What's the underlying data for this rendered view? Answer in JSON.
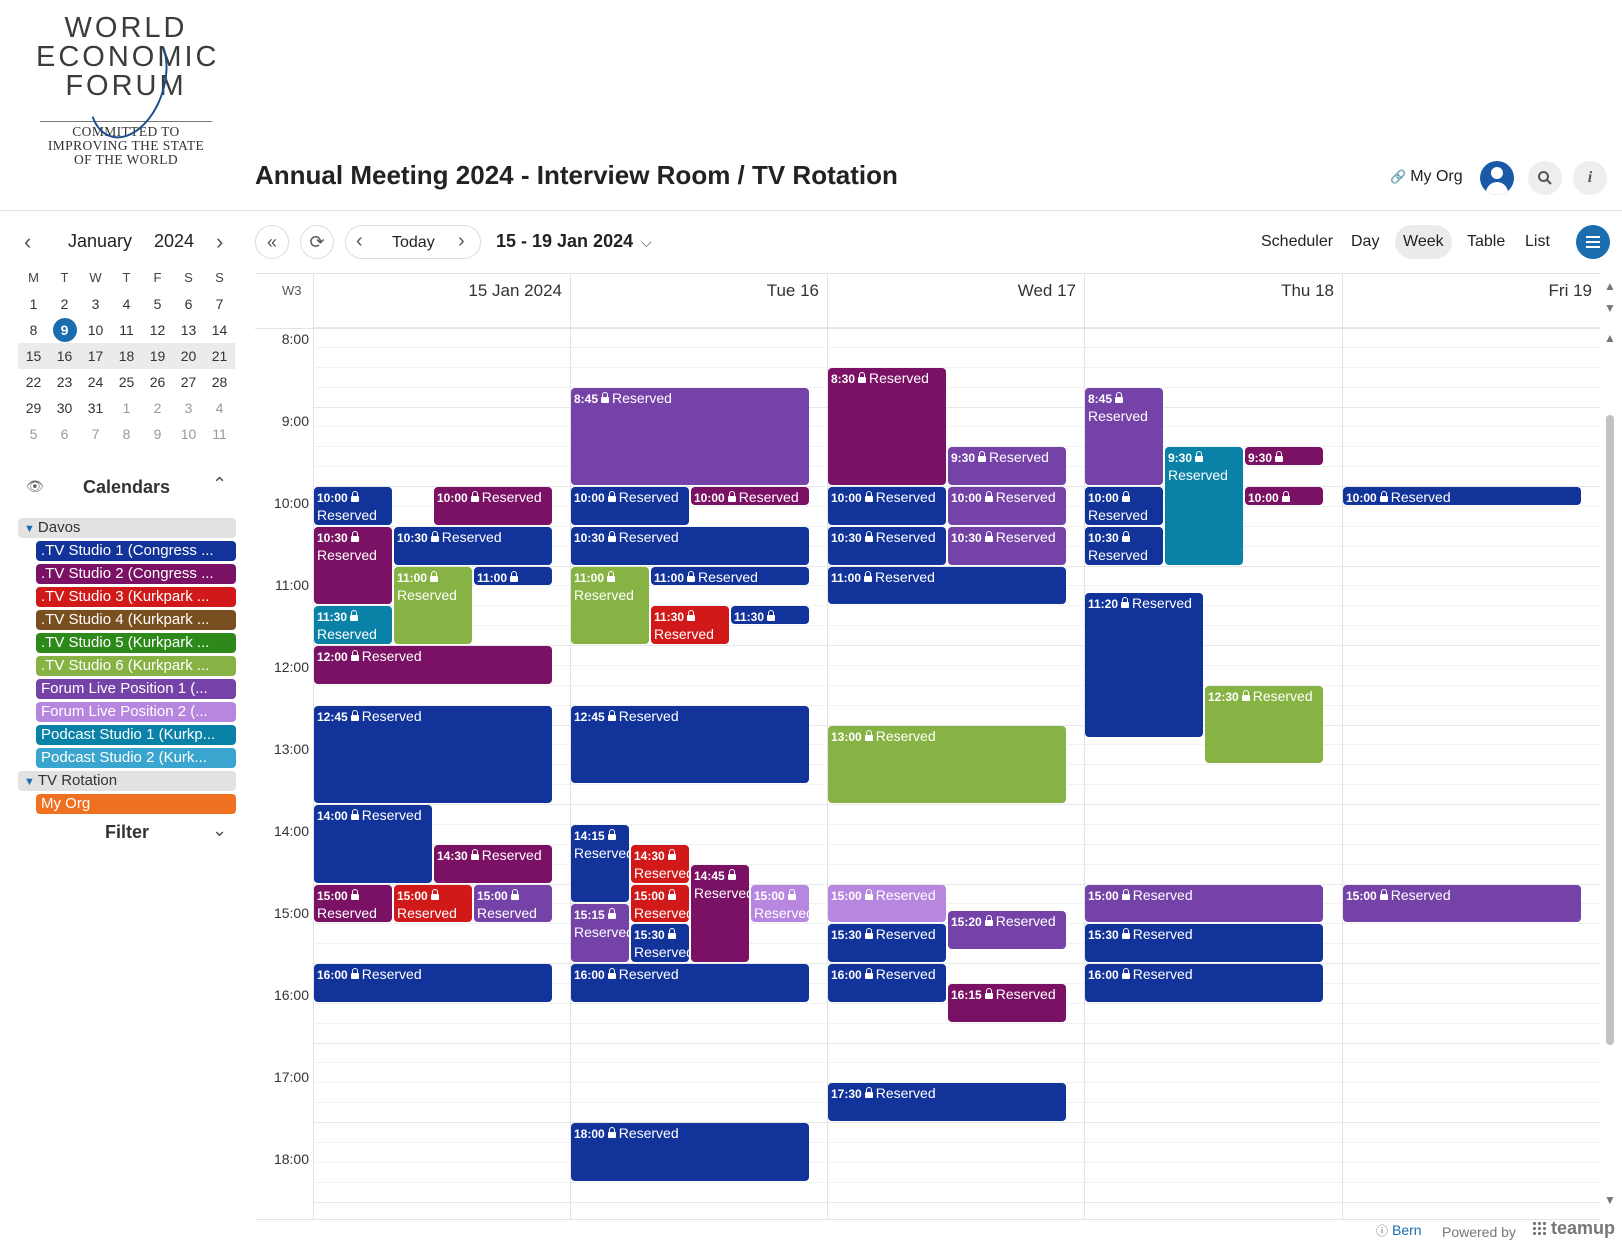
{
  "brand": {
    "logo_lines": [
      "WORLD",
      "ECONOMIC",
      "FORUM"
    ],
    "tagline_lines": [
      "COMMITTED TO",
      "IMPROVING THE STATE",
      "OF THE WORLD"
    ]
  },
  "header": {
    "title": "Annual Meeting 2024 - Interview Room / TV Rotation",
    "org_link": "My Org",
    "icons": [
      "link-icon",
      "user-icon",
      "search-icon",
      "info-icon"
    ]
  },
  "mini_calendar": {
    "month": "January",
    "year": "2024",
    "weekday_headers": [
      "M",
      "T",
      "W",
      "T",
      "F",
      "S",
      "S"
    ],
    "today": "9",
    "weeks": [
      [
        "1",
        "2",
        "3",
        "4",
        "5",
        "6",
        "7"
      ],
      [
        "8",
        "9",
        "10",
        "11",
        "12",
        "13",
        "14"
      ],
      [
        "15",
        "16",
        "17",
        "18",
        "19",
        "20",
        "21"
      ],
      [
        "22",
        "23",
        "24",
        "25",
        "26",
        "27",
        "28"
      ],
      [
        "29",
        "30",
        "31",
        "1",
        "2",
        "3",
        "4"
      ],
      [
        "5",
        "6",
        "7",
        "8",
        "9",
        "10",
        "11"
      ]
    ]
  },
  "sidebar": {
    "calendars_heading": "Calendars",
    "filter_heading": "Filter",
    "groups": [
      {
        "name": "Davos",
        "items": [
          {
            "label": ".TV Studio 1 (Congress ...",
            "color": "#12339a"
          },
          {
            "label": ".TV Studio 2 (Congress ...",
            "color": "#7b1164"
          },
          {
            "label": ".TV Studio 3 (Kurkpark ...",
            "color": "#d11919"
          },
          {
            "label": ".TV Studio 4 (Kurkpark ...",
            "color": "#7a4f1f"
          },
          {
            "label": ".TV Studio 5 (Kurkpark ...",
            "color": "#2d8a1a"
          },
          {
            "label": ".TV Studio 6 (Kurkpark ...",
            "color": "#87b344"
          },
          {
            "label": "Forum Live Position 1 (...",
            "color": "#7543a8"
          },
          {
            "label": "Forum Live Position 2 (...",
            "color": "#b787e0"
          },
          {
            "label": "Podcast Studio 1 (Kurkp...",
            "color": "#0a82a8"
          },
          {
            "label": "Podcast Studio 2 (Kurk...",
            "color": "#3aa6cf"
          }
        ]
      },
      {
        "name": "TV Rotation",
        "items": [
          {
            "label": "My Org",
            "color": "#f07021"
          }
        ]
      }
    ]
  },
  "toolbar": {
    "today": "Today",
    "date_range": "15 - 19 Jan 2024",
    "views": [
      "Scheduler",
      "Day",
      "Week",
      "Table",
      "List"
    ],
    "active_view": "Week"
  },
  "week": {
    "label": "W3",
    "days": [
      "15 Jan 2024",
      "Tue 16",
      "Wed 17",
      "Thu 18",
      "Fri 19"
    ],
    "hours": [
      "8:00",
      "9:00",
      "10:00",
      "11:00",
      "12:00",
      "13:00",
      "14:00",
      "15:00",
      "16:00",
      "17:00",
      "18:00"
    ]
  },
  "events": [
    {
      "day": 0,
      "start": "10:00",
      "end": "10:30",
      "col": 0,
      "cols": 3,
      "title": "Reserved",
      "color": "#12339a"
    },
    {
      "day": 0,
      "start": "10:00",
      "end": "10:30",
      "col": 1,
      "cols": 2,
      "title": "Reserved",
      "color": "#7b1164"
    },
    {
      "day": 0,
      "start": "10:30",
      "end": "11:30",
      "col": 0,
      "cols": 3,
      "title": "Reserved",
      "color": "#7b1164"
    },
    {
      "day": 0,
      "start": "10:30",
      "end": "11:00",
      "col": 1,
      "cols": 3,
      "span": 2,
      "title": "Reserved",
      "color": "#12339a"
    },
    {
      "day": 0,
      "start": "11:00",
      "end": "12:00",
      "col": 1,
      "cols": 3,
      "title": "Reserved",
      "color": "#87b344"
    },
    {
      "day": 0,
      "start": "11:00",
      "end": "11:15",
      "col": 2,
      "cols": 3,
      "title": "",
      "color": "#12339a"
    },
    {
      "day": 0,
      "start": "11:30",
      "end": "12:00",
      "col": 0,
      "cols": 3,
      "title": "Reserved",
      "color": "#0a82a8"
    },
    {
      "day": 0,
      "start": "12:00",
      "end": "12:30",
      "col": 0,
      "cols": 1,
      "title": "Reserved",
      "color": "#7b1164"
    },
    {
      "day": 0,
      "start": "12:45",
      "end": "14:00",
      "col": 0,
      "cols": 1,
      "title": "Reserved",
      "color": "#12339a"
    },
    {
      "day": 0,
      "start": "14:00",
      "end": "15:00",
      "col": 0,
      "cols": 2,
      "title": "Reserved",
      "color": "#12339a"
    },
    {
      "day": 0,
      "start": "14:30",
      "end": "15:00",
      "col": 1,
      "cols": 2,
      "title": "Reserved",
      "color": "#7b1164"
    },
    {
      "day": 0,
      "start": "15:00",
      "end": "15:30",
      "col": 0,
      "cols": 3,
      "title": "Reserved",
      "color": "#7b1164"
    },
    {
      "day": 0,
      "start": "15:00",
      "end": "15:30",
      "col": 1,
      "cols": 3,
      "title": "Reserved",
      "color": "#d11919"
    },
    {
      "day": 0,
      "start": "15:00",
      "end": "15:30",
      "col": 2,
      "cols": 3,
      "title": "Reserved",
      "color": "#7543a8"
    },
    {
      "day": 0,
      "start": "16:00",
      "end": "16:30",
      "col": 0,
      "cols": 1,
      "title": "Reserved",
      "color": "#12339a"
    },
    {
      "day": 1,
      "start": "8:45",
      "end": "10:00",
      "col": 0,
      "cols": 1,
      "title": "Reserved",
      "color": "#7543a8"
    },
    {
      "day": 1,
      "start": "10:00",
      "end": "10:30",
      "col": 0,
      "cols": 2,
      "title": "Reserved",
      "color": "#12339a"
    },
    {
      "day": 1,
      "start": "10:00",
      "end": "10:15",
      "col": 1,
      "cols": 2,
      "title": "Reserved",
      "color": "#7b1164"
    },
    {
      "day": 1,
      "start": "10:30",
      "end": "11:00",
      "col": 0,
      "cols": 1,
      "title": "Reserved",
      "color": "#12339a"
    },
    {
      "day": 1,
      "start": "11:00",
      "end": "12:00",
      "col": 0,
      "cols": 3,
      "title": "Reserved",
      "color": "#87b344"
    },
    {
      "day": 1,
      "start": "11:00",
      "end": "11:15",
      "col": 1,
      "cols": 3,
      "span": 2,
      "title": "Reserved",
      "color": "#12339a"
    },
    {
      "day": 1,
      "start": "11:30",
      "end": "12:00",
      "col": 1,
      "cols": 3,
      "title": "Reserved",
      "color": "#d11919"
    },
    {
      "day": 1,
      "start": "11:30",
      "end": "11:45",
      "col": 2,
      "cols": 3,
      "title": "",
      "color": "#12339a"
    },
    {
      "day": 1,
      "start": "12:45",
      "end": "13:45",
      "col": 0,
      "cols": 1,
      "title": "Reserved",
      "color": "#12339a"
    },
    {
      "day": 1,
      "start": "14:15",
      "end": "15:15",
      "col": 0,
      "cols": 4,
      "title": "Reserved",
      "color": "#12339a"
    },
    {
      "day": 1,
      "start": "14:30",
      "end": "15:00",
      "col": 1,
      "cols": 4,
      "title": "Reserved",
      "color": "#d11919"
    },
    {
      "day": 1,
      "start": "14:45",
      "end": "16:00",
      "col": 2,
      "cols": 4,
      "title": "Reserved",
      "color": "#7b1164"
    },
    {
      "day": 1,
      "start": "15:00",
      "end": "15:30",
      "col": 1,
      "cols": 4,
      "title": "Reserved",
      "color": "#d11919"
    },
    {
      "day": 1,
      "start": "15:00",
      "end": "15:30",
      "col": 3,
      "cols": 4,
      "title": "Reserved",
      "color": "#b787e0"
    },
    {
      "day": 1,
      "start": "15:15",
      "end": "16:00",
      "col": 0,
      "cols": 4,
      "title": "Reserved",
      "color": "#7543a8"
    },
    {
      "day": 1,
      "start": "15:30",
      "end": "16:00",
      "col": 1,
      "cols": 4,
      "title": "Reserved",
      "color": "#12339a"
    },
    {
      "day": 1,
      "start": "16:00",
      "end": "16:30",
      "col": 0,
      "cols": 1,
      "title": "Reserved",
      "color": "#12339a"
    },
    {
      "day": 1,
      "start": "18:00",
      "end": "18:45",
      "col": 0,
      "cols": 1,
      "title": "Reserved",
      "color": "#12339a"
    },
    {
      "day": 2,
      "start": "8:30",
      "end": "10:00",
      "col": 0,
      "cols": 2,
      "title": "Reserved",
      "color": "#7b1164"
    },
    {
      "day": 2,
      "start": "9:30",
      "end": "10:00",
      "col": 1,
      "cols": 2,
      "title": "Reserved",
      "color": "#7543a8"
    },
    {
      "day": 2,
      "start": "10:00",
      "end": "10:30",
      "col": 0,
      "cols": 2,
      "title": "Reserved",
      "color": "#12339a"
    },
    {
      "day": 2,
      "start": "10:00",
      "end": "10:30",
      "col": 1,
      "cols": 2,
      "title": "Reserved",
      "color": "#7543a8"
    },
    {
      "day": 2,
      "start": "10:30",
      "end": "11:00",
      "col": 0,
      "cols": 2,
      "title": "Reserved",
      "color": "#12339a"
    },
    {
      "day": 2,
      "start": "10:30",
      "end": "11:00",
      "col": 1,
      "cols": 2,
      "title": "Reserved",
      "color": "#7543a8"
    },
    {
      "day": 2,
      "start": "11:00",
      "end": "11:30",
      "col": 0,
      "cols": 1,
      "title": "Reserved",
      "color": "#12339a"
    },
    {
      "day": 2,
      "start": "13:00",
      "end": "14:00",
      "col": 0,
      "cols": 1,
      "title": "Reserved",
      "color": "#87b344"
    },
    {
      "day": 2,
      "start": "15:00",
      "end": "15:30",
      "col": 0,
      "cols": 2,
      "title": "Reserved",
      "color": "#b787e0"
    },
    {
      "day": 2,
      "start": "15:20",
      "end": "15:50",
      "col": 1,
      "cols": 2,
      "title": "Reserved",
      "color": "#7543a8"
    },
    {
      "day": 2,
      "start": "15:30",
      "end": "16:00",
      "col": 0,
      "cols": 2,
      "title": "Reserved",
      "color": "#12339a"
    },
    {
      "day": 2,
      "start": "16:00",
      "end": "16:30",
      "col": 0,
      "cols": 2,
      "title": "Reserved",
      "color": "#12339a"
    },
    {
      "day": 2,
      "start": "16:15",
      "end": "16:45",
      "col": 1,
      "cols": 2,
      "title": "Reserved",
      "color": "#7b1164"
    },
    {
      "day": 2,
      "start": "17:30",
      "end": "18:00",
      "col": 0,
      "cols": 1,
      "title": "Reserved",
      "color": "#12339a"
    },
    {
      "day": 3,
      "start": "8:45",
      "end": "10:00",
      "col": 0,
      "cols": 3,
      "title": "Reserved",
      "color": "#7543a8"
    },
    {
      "day": 3,
      "start": "9:30",
      "end": "11:00",
      "col": 1,
      "cols": 3,
      "title": "Reserved",
      "color": "#0a82a8"
    },
    {
      "day": 3,
      "start": "9:30",
      "end": "9:45",
      "col": 2,
      "cols": 3,
      "title": "",
      "color": "#7b1164"
    },
    {
      "day": 3,
      "start": "10:00",
      "end": "10:30",
      "col": 0,
      "cols": 3,
      "title": "Reserved",
      "color": "#12339a"
    },
    {
      "day": 3,
      "start": "10:00",
      "end": "10:15",
      "col": 2,
      "cols": 3,
      "title": "",
      "color": "#7b1164"
    },
    {
      "day": 3,
      "start": "10:30",
      "end": "11:00",
      "col": 0,
      "cols": 3,
      "title": "Reserved",
      "color": "#12339a"
    },
    {
      "day": 3,
      "start": "11:20",
      "end": "13:10",
      "col": 0,
      "cols": 2,
      "title": "Reserved",
      "color": "#12339a"
    },
    {
      "day": 3,
      "start": "12:30",
      "end": "13:30",
      "col": 1,
      "cols": 2,
      "title": "Reserved",
      "color": "#87b344"
    },
    {
      "day": 3,
      "start": "15:00",
      "end": "15:30",
      "col": 0,
      "cols": 1,
      "title": "Reserved",
      "color": "#7543a8"
    },
    {
      "day": 3,
      "start": "15:30",
      "end": "16:00",
      "col": 0,
      "cols": 1,
      "title": "Reserved",
      "color": "#12339a"
    },
    {
      "day": 3,
      "start": "16:00",
      "end": "16:30",
      "col": 0,
      "cols": 1,
      "title": "Reserved",
      "color": "#12339a"
    },
    {
      "day": 4,
      "start": "10:00",
      "end": "10:15",
      "col": 0,
      "cols": 1,
      "title": "Reserved",
      "color": "#12339a"
    },
    {
      "day": 4,
      "start": "15:00",
      "end": "15:30",
      "col": 0,
      "cols": 1,
      "title": "Reserved",
      "color": "#7543a8"
    }
  ],
  "footer": {
    "timezone": "Bern",
    "powered_by": "Powered by",
    "brand": "teamup"
  }
}
